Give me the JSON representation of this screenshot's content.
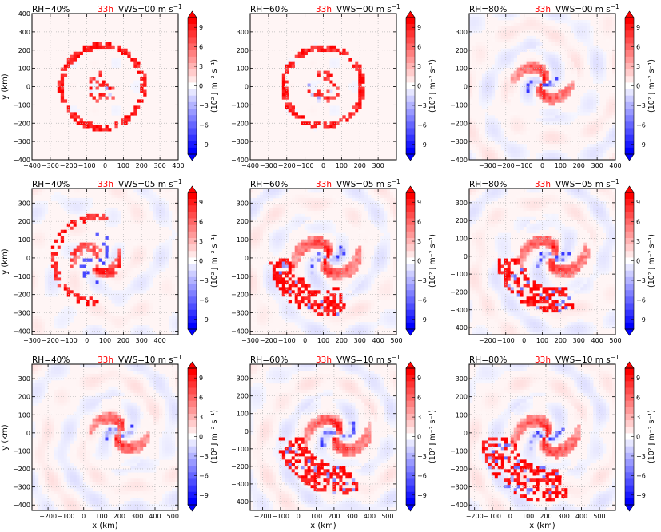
{
  "figure": {
    "colorbar": {
      "label": "(10² J m⁻² s⁻¹)",
      "ticks": [
        "9",
        "6",
        "3",
        "0",
        "−3",
        "−6",
        "−9"
      ],
      "tick_values": [
        9,
        6,
        3,
        0,
        -3,
        -6,
        -9
      ],
      "range": [
        -10.5,
        10.5
      ],
      "colors": {
        "positive": "#ff0000",
        "negative": "#0000ff",
        "neutral": "#ffffff"
      }
    },
    "time_label": "33h",
    "time_color": "#ff0000"
  },
  "chart_data": [
    {
      "type": "heatmap",
      "rh_label": "RH=40%",
      "vws_label": "VWS=00 m s",
      "vws_sup": "−1",
      "xlabel": "",
      "ylabel": "y (km)",
      "xlim": [
        -400,
        400
      ],
      "ylim": [
        -400,
        400
      ],
      "xticks": [
        -400,
        -300,
        -200,
        -100,
        0,
        100,
        200,
        300,
        400
      ],
      "xtick_labels": [
        "−400",
        "−300",
        "−200",
        "−100",
        "0",
        "100",
        "200",
        "300",
        "400"
      ],
      "yticks": [
        -400,
        -300,
        -200,
        -100,
        0,
        100,
        200,
        300,
        400
      ],
      "ytick_labels": [
        "−400",
        "−300",
        "−200",
        "−100",
        "0",
        "100",
        "200",
        "300",
        "400"
      ],
      "grid": true,
      "pattern": {
        "kind": "ring",
        "cx": -15,
        "cy": 0,
        "r1": 85,
        "r2": 225,
        "hole": 0.1,
        "seed": 11
      }
    },
    {
      "type": "heatmap",
      "rh_label": "RH=60%",
      "vws_label": "VWS=00 m s",
      "vws_sup": "−1",
      "xlabel": "",
      "ylabel": "",
      "xlim": [
        -400,
        400
      ],
      "ylim": [
        -400,
        400
      ],
      "xticks": [
        -400,
        -300,
        -200,
        -100,
        0,
        100,
        200,
        300
      ],
      "xtick_labels": [
        "−400",
        "−300",
        "−200",
        "−100",
        "0",
        "100",
        "200",
        "300"
      ],
      "yticks": [
        -400,
        -300,
        -200,
        -100,
        0,
        100,
        200,
        300
      ],
      "ytick_labels": [
        "−400",
        "−300",
        "−200",
        "−100",
        "0",
        "100",
        "200",
        "300"
      ],
      "grid": true,
      "pattern": {
        "kind": "ring",
        "cx": 0,
        "cy": 0,
        "r1": 95,
        "r2": 215,
        "hole": 0.3,
        "seed": 23
      }
    },
    {
      "type": "heatmap",
      "rh_label": "RH=80%",
      "vws_label": "VWS=00 m s",
      "vws_sup": "−1",
      "xlabel": "",
      "ylabel": "",
      "xlim": [
        -400,
        400
      ],
      "ylim": [
        -400,
        400
      ],
      "xticks": [
        -300,
        -200,
        -100,
        0,
        100,
        200,
        300,
        400
      ],
      "xtick_labels": [
        "−300",
        "−200",
        "−100",
        "0",
        "100",
        "200",
        "300",
        "400"
      ],
      "yticks": [
        -400,
        -300,
        -200,
        -100,
        0,
        100,
        200,
        300
      ],
      "ytick_labels": [
        "−400",
        "−300",
        "−200",
        "−100",
        "0",
        "100",
        "200",
        "300"
      ],
      "grid": true,
      "pattern": {
        "kind": "spiral",
        "cx": 0,
        "cy": 20,
        "rmax": 200,
        "tail": 0,
        "seed": 37
      }
    },
    {
      "type": "heatmap",
      "rh_label": "RH=40%",
      "vws_label": "VWS=05 m s",
      "vws_sup": "−1",
      "xlabel": "",
      "ylabel": "y (km)",
      "xlim": [
        -300,
        500
      ],
      "ylim": [
        -420,
        380
      ],
      "xticks": [
        -300,
        -200,
        -100,
        0,
        100,
        200,
        300,
        400
      ],
      "xtick_labels": [
        "−300",
        "−200",
        "−100",
        "0",
        "100",
        "200",
        "300",
        "400"
      ],
      "yticks": [
        -400,
        -300,
        -200,
        -100,
        0,
        100,
        200,
        300
      ],
      "ytick_labels": [
        "−400",
        "−300",
        "−200",
        "−100",
        "0",
        "100",
        "200",
        "300"
      ],
      "grid": true,
      "pattern": {
        "kind": "arc",
        "cx": 50,
        "cy": -10,
        "rmax": 230,
        "seed": 41
      }
    },
    {
      "type": "heatmap",
      "rh_label": "RH=60%",
      "vws_label": "VWS=05 m s",
      "vws_sup": "−1",
      "xlabel": "",
      "ylabel": "",
      "xlim": [
        -300,
        500
      ],
      "ylim": [
        -420,
        380
      ],
      "xticks": [
        -300,
        -200,
        -100,
        0,
        100,
        200,
        300,
        400,
        500
      ],
      "xtick_labels": [
        "−300",
        "−200",
        "−100",
        "0",
        "100",
        "200",
        "300",
        "400",
        "500"
      ],
      "yticks": [
        -400,
        -300,
        -200,
        -100,
        0,
        100,
        200,
        300
      ],
      "ytick_labels": [
        "−400",
        "−300",
        "−200",
        "−100",
        "0",
        "100",
        "200",
        "300"
      ],
      "grid": true,
      "pattern": {
        "kind": "spiral",
        "cx": 120,
        "cy": 0,
        "rmax": 230,
        "tail": 1,
        "seed": 53
      }
    },
    {
      "type": "heatmap",
      "rh_label": "RH=80%",
      "vws_label": "VWS=05 m s",
      "vws_sup": "−1",
      "xlabel": "",
      "ylabel": "",
      "xlim": [
        -300,
        500
      ],
      "ylim": [
        -440,
        380
      ],
      "xticks": [
        -200,
        -100,
        0,
        100,
        200,
        300,
        400,
        500
      ],
      "xtick_labels": [
        "−200",
        "−100",
        "0",
        "100",
        "200",
        "300",
        "400",
        "500"
      ],
      "yticks": [
        -400,
        -300,
        -200,
        -100,
        0,
        100,
        200,
        300
      ],
      "ytick_labels": [
        "−400",
        "−300",
        "−200",
        "−100",
        "0",
        "100",
        "200",
        "300"
      ],
      "grid": true,
      "pattern": {
        "kind": "spiral",
        "cx": 160,
        "cy": 0,
        "rmax": 230,
        "tail": 1,
        "seed": 67
      }
    },
    {
      "type": "heatmap",
      "rh_label": "RH=40%",
      "vws_label": "VWS=10 m s",
      "vws_sup": "−1",
      "xlabel": "x (km)",
      "ylabel": "y (km)",
      "xlim": [
        -290,
        530
      ],
      "ylim": [
        -430,
        380
      ],
      "xticks": [
        -200,
        -100,
        0,
        100,
        200,
        300,
        400,
        500
      ],
      "xtick_labels": [
        "−200",
        "−100",
        "0",
        "100",
        "200",
        "300",
        "400",
        "500"
      ],
      "yticks": [
        -400,
        -300,
        -200,
        -100,
        0,
        100,
        200,
        300
      ],
      "ytick_labels": [
        "−400",
        "−300",
        "−200",
        "−100",
        "0",
        "100",
        "200",
        "300"
      ],
      "grid": true,
      "pattern": {
        "kind": "spiral",
        "cx": 200,
        "cy": 0,
        "rmax": 200,
        "tail": 0,
        "seed": 79
      }
    },
    {
      "type": "heatmap",
      "rh_label": "RH=60%",
      "vws_label": "VWS=10 m s",
      "vws_sup": "−1",
      "xlabel": "x (km)",
      "ylabel": "",
      "xlim": [
        -270,
        550
      ],
      "ylim": [
        -450,
        380
      ],
      "xticks": [
        -200,
        -100,
        0,
        100,
        200,
        300,
        400,
        500
      ],
      "xtick_labels": [
        "−200",
        "−100",
        "0",
        "100",
        "200",
        "300",
        "400",
        "500"
      ],
      "yticks": [
        -400,
        -300,
        -200,
        -100,
        0,
        100,
        200,
        300
      ],
      "ytick_labels": [
        "−400",
        "−300",
        "−200",
        "−100",
        "0",
        "100",
        "200",
        "300"
      ],
      "grid": true,
      "pattern": {
        "kind": "spiral",
        "cx": 220,
        "cy": -20,
        "rmax": 230,
        "tail": 2,
        "seed": 83
      }
    },
    {
      "type": "heatmap",
      "rh_label": "RH=80%",
      "vws_label": "VWS=10 m s",
      "vws_sup": "−1",
      "xlabel": "x (km)",
      "ylabel": "",
      "xlim": [
        -230,
        590
      ],
      "ylim": [
        -430,
        380
      ],
      "xticks": [
        -200,
        -100,
        0,
        100,
        200,
        300,
        400,
        500
      ],
      "xtick_labels": [
        "−200",
        "−100",
        "0",
        "100",
        "200",
        "300",
        "400",
        "500"
      ],
      "yticks": [
        -400,
        -300,
        -200,
        -100,
        0,
        100,
        200,
        300
      ],
      "ytick_labels": [
        "−400",
        "−300",
        "−200",
        "−100",
        "0",
        "100",
        "200",
        "300"
      ],
      "grid": true,
      "pattern": {
        "kind": "spiral",
        "cx": 200,
        "cy": -20,
        "rmax": 230,
        "tail": 3,
        "seed": 97
      }
    }
  ]
}
